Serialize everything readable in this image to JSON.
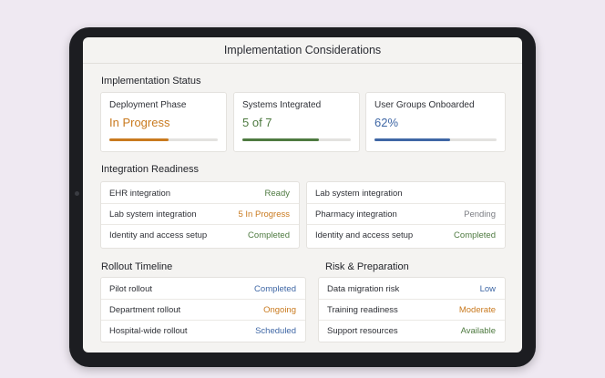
{
  "window": {
    "title": "Implementation Considerations"
  },
  "implementation_status": {
    "title": "Implementation Status",
    "metrics": [
      {
        "label": "Deployment Phase",
        "value": "In Progress",
        "color": "#c97a1f",
        "progress_percent": 55
      },
      {
        "label": "Systems Integrated",
        "value": "5 of 7",
        "color": "#4e7a40",
        "progress_percent": 71
      },
      {
        "label": "User Groups Onboarded",
        "value": "62%",
        "color": "#3f67a5",
        "progress_percent": 62
      }
    ]
  },
  "integration_readiness": {
    "title": "Integration Readiness",
    "left": [
      {
        "label": "EHR integration",
        "status": "Ready",
        "status_color": "green"
      },
      {
        "label": "Lab system integration",
        "status": "5 In Progress",
        "status_color": "orange"
      },
      {
        "label": "Identity and access setup",
        "status": "Completed",
        "status_color": "green"
      }
    ],
    "right": [
      {
        "label": "Lab system integration",
        "status": "",
        "status_color": "gray"
      },
      {
        "label": "Pharmacy integration",
        "status": "Pending",
        "status_color": "gray"
      },
      {
        "label": "Identity and access setup",
        "status": "Completed",
        "status_color": "green"
      }
    ]
  },
  "rollout_timeline": {
    "title": "Rollout Timeline",
    "rows": [
      {
        "label": "Pilot rollout",
        "status": "Completed",
        "status_color": "blue"
      },
      {
        "label": "Department rollout",
        "status": "Ongoing",
        "status_color": "orange"
      },
      {
        "label": "Hospital-wide rollout",
        "status": "Scheduled",
        "status_color": "blue"
      }
    ]
  },
  "risk_preparation": {
    "title": "Risk & Preparation",
    "rows": [
      {
        "label": "Data migration risk",
        "status": "Low",
        "status_color": "blue"
      },
      {
        "label": "Training readiness",
        "status": "Moderate",
        "status_color": "orange"
      },
      {
        "label": "Support resources",
        "status": "Available",
        "status_color": "green"
      }
    ]
  }
}
